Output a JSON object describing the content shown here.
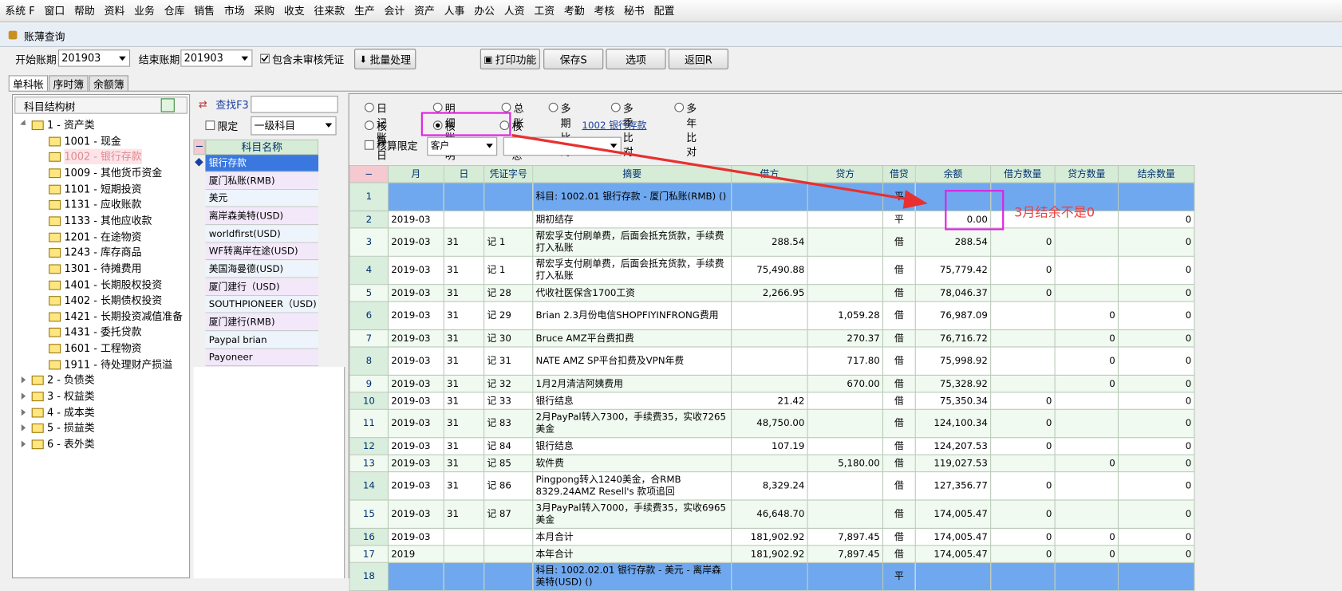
{
  "menu": [
    "系统 F",
    "窗口",
    "帮助",
    "资料",
    "业务",
    "仓库",
    "销售",
    "市场",
    "采购",
    "收支",
    "往来款",
    "生产",
    "会计",
    "资产",
    "人事",
    "办公",
    "人资",
    "工资",
    "考勤",
    "考核",
    "秘书",
    "配置"
  ],
  "window_title": "账薄查询",
  "toolbar": {
    "start_label": "开始账期",
    "start_value": "201903",
    "end_label": "结束账期",
    "end_value": "201903",
    "include_unaudited": "包含未审核凭证",
    "batch": "批量处理",
    "print": "打印功能",
    "save": "保存S",
    "options": "选项",
    "back": "返回R"
  },
  "tabs": [
    "单科帐",
    "序时簿",
    "余额簿"
  ],
  "tree": {
    "title": "科目结构树",
    "groups": [
      {
        "label": "1 - 资产类",
        "children": [
          {
            "label": "1001 - 现金"
          },
          {
            "label": "1002 - 银行存款",
            "selected": true
          },
          {
            "label": "1009 - 其他货币资金"
          },
          {
            "label": "1101 - 短期投资"
          },
          {
            "label": "1131 - 应收账款"
          },
          {
            "label": "1133 - 其他应收款"
          },
          {
            "label": "1201 - 在途物资"
          },
          {
            "label": "1243 - 库存商品"
          },
          {
            "label": "1301 - 待摊费用"
          },
          {
            "label": "1401 - 长期股权投资"
          },
          {
            "label": "1402 - 长期债权投资"
          },
          {
            "label": "1421 - 长期投资减值准备"
          },
          {
            "label": "1431 - 委托贷款"
          },
          {
            "label": "1601 - 工程物资"
          },
          {
            "label": "1911 - 待处理财产损溢"
          }
        ]
      },
      {
        "label": "2 - 负债类"
      },
      {
        "label": "3 - 权益类"
      },
      {
        "label": "4 - 成本类"
      },
      {
        "label": "5 - 损益类"
      },
      {
        "label": "6 - 表外类"
      }
    ]
  },
  "subject_panel": {
    "search": "查找F3",
    "restrict": "限定",
    "level": "一级科目",
    "column": "科目名称",
    "items": [
      "银行存款",
      "厦门私账(RMB)",
      "美元",
      "离岸森美特(USD)",
      "worldfirst(USD)",
      "WF转离岸在途(USD)",
      "美国海曼德(USD)",
      "厦门建行（USD)",
      "SOUTHPIONEER（USD)",
      "厦门建行(RMB)",
      "Paypal brian",
      "Payoneer"
    ]
  },
  "options": {
    "radios": [
      {
        "label": "日记账"
      },
      {
        "label": "明细账"
      },
      {
        "label": "总账"
      },
      {
        "label": "多期比对"
      },
      {
        "label": "多季比对"
      },
      {
        "label": "多年比对"
      },
      {
        "label": "核算日记账"
      },
      {
        "label": "核算明细账",
        "checked": true
      },
      {
        "label": "核算总账"
      }
    ],
    "link": "1002 银行存款",
    "restrict_label": "核算限定",
    "restrict_type": "客户",
    "more": ".."
  },
  "table": {
    "columns": [
      "−",
      "月",
      "日",
      "凭证字号",
      "摘要",
      "借方",
      "贷方",
      "借贷",
      "余额",
      "借方数量",
      "贷方数量",
      "结余数量"
    ],
    "rows": [
      [
        "1",
        null,
        null,
        null,
        "科目: 1002.01 银行存款 - 厦门私账(RMB) ()",
        null,
        null,
        "平",
        null,
        null,
        null,
        null
      ],
      [
        "2",
        "2019-03",
        null,
        null,
        "期初结存",
        null,
        null,
        "平",
        "0.00",
        null,
        null,
        "0"
      ],
      [
        "3",
        "2019-03",
        "31",
        "记 1",
        "帮宏孚支付刷单费，后面会抵充货款，手续费打入私账",
        "288.54",
        null,
        "借",
        "288.54",
        "0",
        null,
        "0"
      ],
      [
        "4",
        "2019-03",
        "31",
        "记 1",
        "帮宏孚支付刷单费，后面会抵充货款，手续费打入私账",
        "75,490.88",
        null,
        "借",
        "75,779.42",
        "0",
        null,
        "0"
      ],
      [
        "5",
        "2019-03",
        "31",
        "记 28",
        "代收社医保含1700工资",
        "2,266.95",
        null,
        "借",
        "78,046.37",
        "0",
        null,
        "0"
      ],
      [
        "6",
        "2019-03",
        "31",
        "记 29",
        "Brian 2.3月份电信SHOPFIYINFRONG费用",
        null,
        "1,059.28",
        "借",
        "76,987.09",
        null,
        "0",
        "0"
      ],
      [
        "7",
        "2019-03",
        "31",
        "记 30",
        "Bruce AMZ平台费扣费",
        null,
        "270.37",
        "借",
        "76,716.72",
        null,
        "0",
        "0"
      ],
      [
        "8",
        "2019-03",
        "31",
        "记 31",
        "NATE AMZ SP平台扣费及VPN年费",
        null,
        "717.80",
        "借",
        "75,998.92",
        null,
        "0",
        "0"
      ],
      [
        "9",
        "2019-03",
        "31",
        "记 32",
        "1月2月清洁阿姨费用",
        null,
        "670.00",
        "借",
        "75,328.92",
        null,
        "0",
        "0"
      ],
      [
        "10",
        "2019-03",
        "31",
        "记 33",
        "银行结息",
        "21.42",
        null,
        "借",
        "75,350.34",
        "0",
        null,
        "0"
      ],
      [
        "11",
        "2019-03",
        "31",
        "记 83",
        "2月PayPal转入7300，手续费35，实收7265美金",
        "48,750.00",
        null,
        "借",
        "124,100.34",
        "0",
        null,
        "0"
      ],
      [
        "12",
        "2019-03",
        "31",
        "记 84",
        "银行结息",
        "107.19",
        null,
        "借",
        "124,207.53",
        "0",
        null,
        "0"
      ],
      [
        "13",
        "2019-03",
        "31",
        "记 85",
        "软件费",
        null,
        "5,180.00",
        "借",
        "119,027.53",
        null,
        "0",
        "0"
      ],
      [
        "14",
        "2019-03",
        "31",
        "记 86",
        "Pingpong转入1240美金，合RMB 8329.24AMZ Resell's 款项追回",
        "8,329.24",
        null,
        "借",
        "127,356.77",
        "0",
        null,
        "0"
      ],
      [
        "15",
        "2019-03",
        "31",
        "记 87",
        "3月PayPal转入7000，手续费35，实收6965美金",
        "46,648.70",
        null,
        "借",
        "174,005.47",
        "0",
        null,
        "0"
      ],
      [
        "16",
        "2019-03",
        null,
        null,
        "本月合计",
        "181,902.92",
        "7,897.45",
        "借",
        "174,005.47",
        "0",
        "0",
        "0"
      ],
      [
        "17",
        "2019",
        null,
        null,
        "本年合计",
        "181,902.92",
        "7,897.45",
        "借",
        "174,005.47",
        "0",
        "0",
        "0"
      ],
      [
        "18",
        null,
        null,
        null,
        "科目: 1002.02.01 银行存款 - 美元 - 离岸森美特(USD) ()",
        null,
        null,
        "平",
        null,
        null,
        null,
        null
      ]
    ]
  },
  "annotation": "3月结余不是0"
}
